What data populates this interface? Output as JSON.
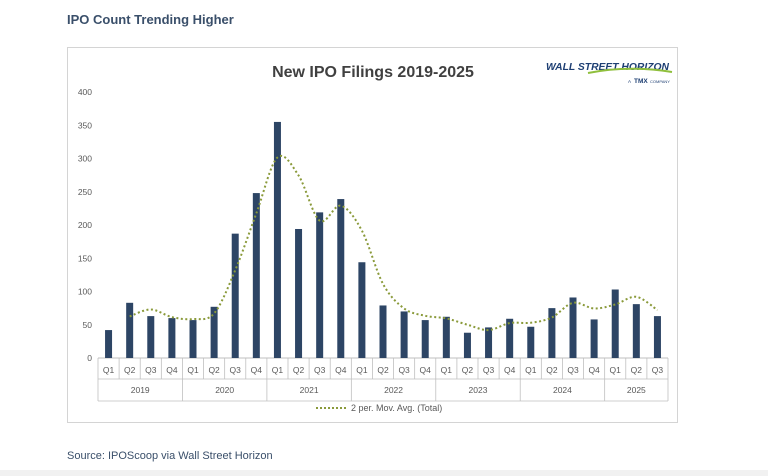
{
  "page": {
    "heading": "IPO Count Trending Higher",
    "source": "Source: IPOScoop via Wall Street Horizon"
  },
  "logo": {
    "name": "WALL STREET HORIZON",
    "sub_a": "A",
    "sub_b": "TMX",
    "sub_c": "COMPANY"
  },
  "colors": {
    "bar": "#2d4565",
    "moving_average": "#8a9a3a",
    "axis": "#bfbfbf",
    "tick_text": "#595959",
    "logo_blue": "#1e3f73",
    "logo_green": "#8fbf3c"
  },
  "chart_data": {
    "type": "bar",
    "title": "New IPO Filings 2019-2025",
    "xlabel": "",
    "ylabel": "",
    "ylim": [
      0,
      400
    ],
    "yticks": [
      0,
      50,
      100,
      150,
      200,
      250,
      300,
      350,
      400
    ],
    "grid": false,
    "legend_position": "bottom",
    "categories": [
      "Q1",
      "Q2",
      "Q3",
      "Q4",
      "Q1",
      "Q2",
      "Q3",
      "Q4",
      "Q1",
      "Q2",
      "Q3",
      "Q4",
      "Q1",
      "Q2",
      "Q3",
      "Q4",
      "Q1",
      "Q2",
      "Q3",
      "Q4",
      "Q1",
      "Q2",
      "Q3",
      "Q4",
      "Q1",
      "Q2",
      "Q3"
    ],
    "groups": [
      {
        "label": "2019",
        "count": 4
      },
      {
        "label": "2020",
        "count": 4
      },
      {
        "label": "2021",
        "count": 4
      },
      {
        "label": "2022",
        "count": 4
      },
      {
        "label": "2023",
        "count": 4
      },
      {
        "label": "2024",
        "count": 4
      },
      {
        "label": "2025",
        "count": 3
      }
    ],
    "series": [
      {
        "values": [
          42,
          83,
          63,
          60,
          57,
          77,
          187,
          248,
          355,
          194,
          219,
          239,
          144,
          79,
          70,
          57,
          62,
          38,
          46,
          59,
          47,
          75,
          91,
          58,
          103,
          81,
          63
        ]
      }
    ],
    "trendline": {
      "name": "2 per. Mov. Avg. (Total)",
      "period": 2
    }
  }
}
